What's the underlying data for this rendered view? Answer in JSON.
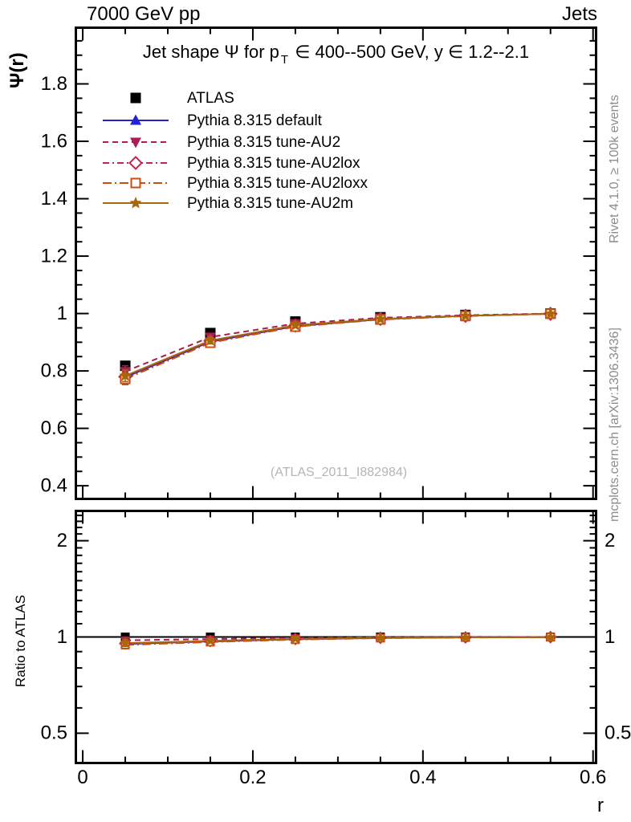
{
  "header": {
    "left": "7000 GeV pp",
    "right": "Jets"
  },
  "titles": {
    "main_pre": "Jet shape Ψ for p",
    "main_sub": "T",
    "main_post": " ∈ 400--500 GeV, y ∈ 1.2--2.1"
  },
  "axis_labels": {
    "main_y": "Ψ(r)",
    "ratio_y": "Ratio to ATLAS",
    "x": "r"
  },
  "side_notes": {
    "right_top": "Rivet 4.1.0, ≥ 100k events",
    "right_bottom": "mcplots.cern.ch [arXiv:1306.3436]"
  },
  "watermark": "(ATLAS_2011_I882984)",
  "colors": {
    "frame": "#000000",
    "watermark": "#b5b5b5",
    "note_gray": "#8c8c8c"
  },
  "chart_data": {
    "type": "line",
    "title": "Jet shape Psi for pT in 400--500 GeV, y in 1.2--2.1",
    "xlabel": "r",
    "ylabel_main": "Psi(r)",
    "ylabel_ratio": "Ratio to ATLAS",
    "x": [
      0.05,
      0.15,
      0.25,
      0.35,
      0.45,
      0.55
    ],
    "xlim": [
      -0.0095,
      0.605
    ],
    "xticks": {
      "major": [
        0,
        0.2,
        0.4,
        0.6
      ],
      "labels": [
        "0",
        "0.2",
        "0.4",
        "0.6"
      ],
      "minor_step": 0.05
    },
    "main": {
      "scale": "linear",
      "ylim": [
        0.35,
        2.0
      ],
      "yticks": {
        "major": [
          0.4,
          0.6,
          0.8,
          1.0,
          1.2,
          1.4,
          1.6,
          1.8
        ],
        "labels": [
          "0.4",
          "0.6",
          "0.8",
          "1",
          "1.2",
          "1.4",
          "1.6",
          "1.8"
        ],
        "minor_step": 0.05
      }
    },
    "ratio": {
      "scale": "log",
      "ylim": [
        0.4,
        2.5
      ],
      "unity_line": 1.0,
      "yticks": {
        "major": [
          0.5,
          1,
          2
        ],
        "labels": [
          "0.5",
          "1",
          "2"
        ],
        "minor": [
          0.4,
          0.6,
          0.7,
          0.8,
          0.9,
          1.1,
          1.2,
          1.3,
          1.4,
          1.5,
          1.6,
          1.7,
          1.8,
          1.9,
          2.1,
          2.2,
          2.3,
          2.4
        ]
      }
    },
    "series": [
      {
        "name": "ATLAS",
        "color": "#000000",
        "marker": "square-filled",
        "line": "none",
        "dash": "",
        "values": [
          0.818,
          0.932,
          0.972,
          0.987,
          0.995,
          1.0
        ],
        "err": [
          0.013,
          0.008,
          0.006,
          0.004,
          0.004,
          0.003
        ],
        "ratio": [
          1.0,
          1.0,
          1.0,
          1.0,
          1.0,
          1.0
        ],
        "ratio_err": [
          0.016,
          0.01,
          0.007,
          0.005,
          0.004,
          0.004
        ]
      },
      {
        "name": "Pythia 8.315 default",
        "color": "#2323cd",
        "marker": "triangle-up-filled",
        "line": "solid",
        "dash": "",
        "values": [
          0.778,
          0.902,
          0.956,
          0.98,
          0.992,
          0.999
        ],
        "err": [
          0.02,
          0.012,
          0.008,
          0.006,
          0.005,
          0.004
        ],
        "ratio": [
          0.951,
          0.968,
          0.984,
          0.993,
          0.997,
          0.999
        ],
        "ratio_err": [
          0.024,
          0.014,
          0.009,
          0.007,
          0.006,
          0.005
        ]
      },
      {
        "name": "Pythia 8.315 tune-AU2",
        "color": "#aa1c55",
        "marker": "triangle-down-filled",
        "line": "dashed",
        "dash": "7,5",
        "values": [
          0.798,
          0.918,
          0.965,
          0.985,
          0.994,
          1.0
        ],
        "err": [
          0.02,
          0.012,
          0.008,
          0.006,
          0.005,
          0.004
        ],
        "ratio": [
          0.976,
          0.985,
          0.993,
          0.998,
          0.999,
          1.0
        ],
        "ratio_err": [
          0.024,
          0.014,
          0.009,
          0.007,
          0.006,
          0.005
        ]
      },
      {
        "name": "Pythia 8.315 tune-AU2lox",
        "color": "#c32653",
        "marker": "diamond-open",
        "line": "dashdot",
        "dash": "8,4,2,4",
        "values": [
          0.78,
          0.905,
          0.958,
          0.981,
          0.992,
          0.999
        ],
        "err": [
          0.02,
          0.012,
          0.008,
          0.006,
          0.005,
          0.004
        ],
        "ratio": [
          0.954,
          0.971,
          0.986,
          0.994,
          0.997,
          0.999
        ],
        "ratio_err": [
          0.024,
          0.014,
          0.009,
          0.007,
          0.006,
          0.005
        ]
      },
      {
        "name": "Pythia 8.315 tune-AU2loxx",
        "color": "#c94f10",
        "marker": "square-open",
        "line": "longdashdot",
        "dash": "11,4,2,4",
        "values": [
          0.772,
          0.898,
          0.954,
          0.979,
          0.991,
          0.999
        ],
        "err": [
          0.02,
          0.012,
          0.008,
          0.006,
          0.005,
          0.004
        ],
        "ratio": [
          0.944,
          0.964,
          0.981,
          0.992,
          0.996,
          0.999
        ],
        "ratio_err": [
          0.024,
          0.014,
          0.009,
          0.007,
          0.006,
          0.005
        ]
      },
      {
        "name": "Pythia 8.315 tune-AU2m",
        "color": "#a5680b",
        "marker": "star-filled",
        "line": "solid",
        "dash": "",
        "values": [
          0.783,
          0.906,
          0.959,
          0.981,
          0.992,
          0.999
        ],
        "err": [
          0.02,
          0.012,
          0.008,
          0.006,
          0.005,
          0.004
        ],
        "ratio": [
          0.957,
          0.972,
          0.987,
          0.994,
          0.997,
          0.999
        ],
        "ratio_err": [
          0.024,
          0.014,
          0.009,
          0.007,
          0.006,
          0.005
        ]
      }
    ],
    "legend_position": "top-left-inside"
  }
}
